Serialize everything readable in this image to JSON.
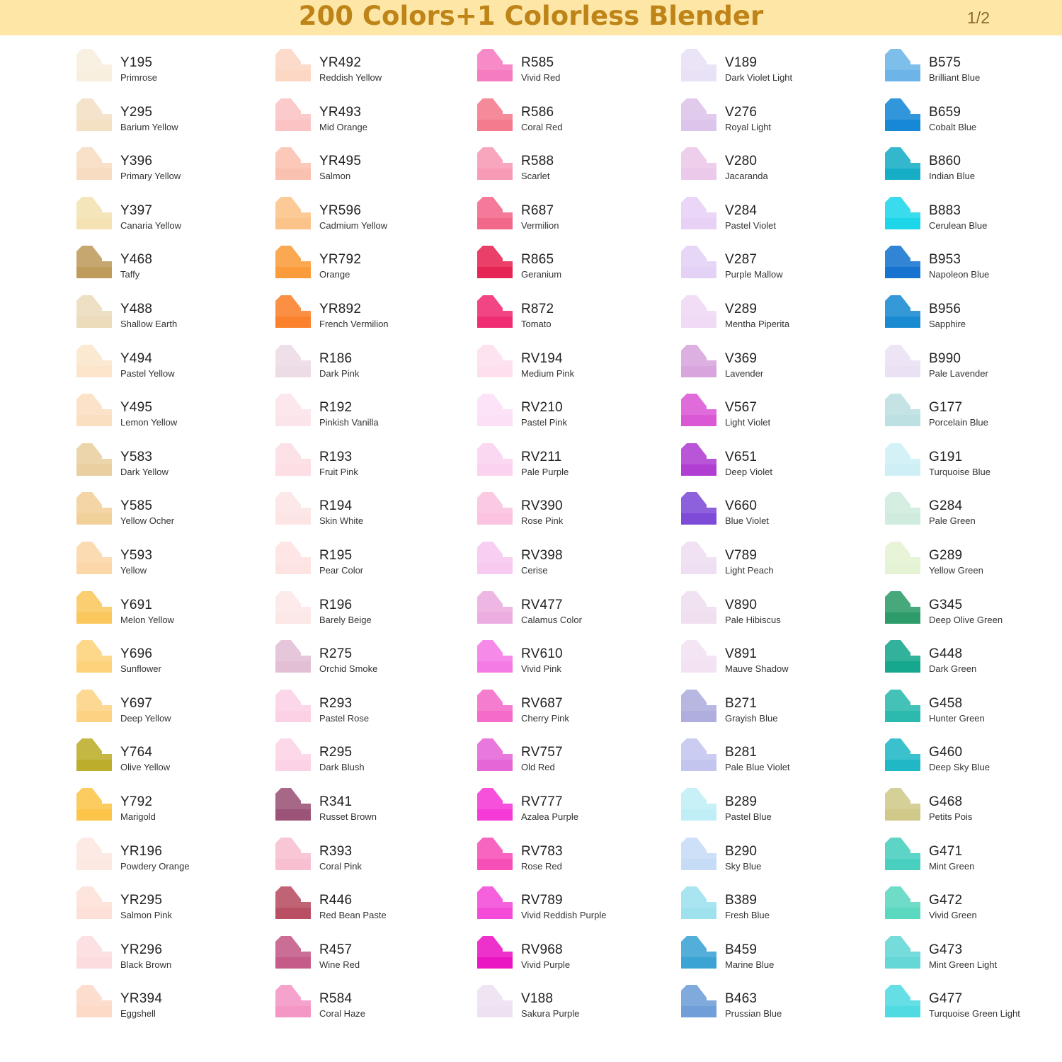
{
  "header": {
    "title": "200 Colors+1 Colorless Blender",
    "page_indicator": "1/2",
    "background_color": "#fde6a6",
    "title_color": "#bf8417"
  },
  "columns": [
    [
      {
        "code": "Y195",
        "name": "Primrose",
        "color": "#f8efdf"
      },
      {
        "code": "Y295",
        "name": "Barium Yellow",
        "color": "#f4e1c4"
      },
      {
        "code": "Y396",
        "name": "Primary Yellow",
        "color": "#f7dcc2"
      },
      {
        "code": "Y397",
        "name": "Canaria Yellow",
        "color": "#f4e2b2"
      },
      {
        "code": "Y468",
        "name": "Taffy",
        "color": "#bf9b5c"
      },
      {
        "code": "Y488",
        "name": "Shallow Earth",
        "color": "#ecdcbc"
      },
      {
        "code": "Y494",
        "name": "Pastel Yellow",
        "color": "#fbe6cc"
      },
      {
        "code": "Y495",
        "name": "Lemon Yellow",
        "color": "#fbdfc1"
      },
      {
        "code": "Y583",
        "name": "Dark Yellow",
        "color": "#ead0a0"
      },
      {
        "code": "Y585",
        "name": "Yellow Ocher",
        "color": "#f2d09a"
      },
      {
        "code": "Y593",
        "name": "Yellow",
        "color": "#fbd7a8"
      },
      {
        "code": "Y691",
        "name": "Melon Yellow",
        "color": "#fbc85e"
      },
      {
        "code": "Y696",
        "name": "Sunflower",
        "color": "#fdd27a"
      },
      {
        "code": "Y697",
        "name": "Deep Yellow",
        "color": "#fdd383"
      },
      {
        "code": "Y764",
        "name": "Olive Yellow",
        "color": "#bcad2a"
      },
      {
        "code": "Y792",
        "name": "Marigold",
        "color": "#fcc54a"
      },
      {
        "code": "YR196",
        "name": "Powdery Orange",
        "color": "#fde8e2"
      },
      {
        "code": "YR295",
        "name": "Salmon Pink",
        "color": "#fde1d8"
      },
      {
        "code": "YR296",
        "name": "Black Brown",
        "color": "#fcdcde"
      },
      {
        "code": "YR394",
        "name": "Eggshell",
        "color": "#fdd9c8"
      }
    ],
    [
      {
        "code": "YR492",
        "name": "Reddish Yellow",
        "color": "#fcd7c4"
      },
      {
        "code": "YR493",
        "name": "Mid Orange",
        "color": "#fbc3c3"
      },
      {
        "code": "YR495",
        "name": "Salmon",
        "color": "#fbc1b0"
      },
      {
        "code": "YR596",
        "name": "Cadmium Yellow",
        "color": "#fbc389"
      },
      {
        "code": "YR792",
        "name": "Orange",
        "color": "#fb9c3c"
      },
      {
        "code": "YR892",
        "name": "French Vermilion",
        "color": "#fb812c"
      },
      {
        "code": "R186",
        "name": "Dark Pink",
        "color": "#eddbe6"
      },
      {
        "code": "R192",
        "name": "Pinkish Vanilla",
        "color": "#fce5ea"
      },
      {
        "code": "R193",
        "name": "Fruit Pink",
        "color": "#fcdee4"
      },
      {
        "code": "R194",
        "name": "Skin White",
        "color": "#fde5e6"
      },
      {
        "code": "R195",
        "name": "Pear Color",
        "color": "#fde3e2"
      },
      {
        "code": "R196",
        "name": "Barely Beige",
        "color": "#fde8e8"
      },
      {
        "code": "R275",
        "name": "Orchid Smoke",
        "color": "#e3bfd6"
      },
      {
        "code": "R293",
        "name": "Pastel Rose",
        "color": "#fcd1e6"
      },
      {
        "code": "R295",
        "name": "Dark Blush",
        "color": "#fcd3e6"
      },
      {
        "code": "R341",
        "name": "Russet Brown",
        "color": "#9b5478"
      },
      {
        "code": "R393",
        "name": "Coral Pink",
        "color": "#f8bfd0"
      },
      {
        "code": "R446",
        "name": "Red Bean Paste",
        "color": "#b84f62"
      },
      {
        "code": "R457",
        "name": "Wine Red",
        "color": "#c45b88"
      },
      {
        "code": "R584",
        "name": "Coral Haze",
        "color": "#f496c6"
      }
    ],
    [
      {
        "code": "R585",
        "name": "Vivid Red",
        "color": "#f67cc0"
      },
      {
        "code": "R586",
        "name": "Coral Red",
        "color": "#f47a8e"
      },
      {
        "code": "R588",
        "name": "Scarlet",
        "color": "#f79ab5"
      },
      {
        "code": "R687",
        "name": "Vermilion",
        "color": "#f2688a"
      },
      {
        "code": "R865",
        "name": "Geranium",
        "color": "#e62555"
      },
      {
        "code": "R872",
        "name": "Tomato",
        "color": "#f02d72"
      },
      {
        "code": "RV194",
        "name": "Medium Pink",
        "color": "#fde0ed"
      },
      {
        "code": "RV210",
        "name": "Pastel Pink",
        "color": "#fce0f6"
      },
      {
        "code": "RV211",
        "name": "Pale Purple",
        "color": "#fbd3f0"
      },
      {
        "code": "RV390",
        "name": "Rose Pink",
        "color": "#fbc3df"
      },
      {
        "code": "RV398",
        "name": "Cerise",
        "color": "#f8c9f1"
      },
      {
        "code": "RV477",
        "name": "Calamus Color",
        "color": "#ecade0"
      },
      {
        "code": "RV610",
        "name": "Vivid Pink",
        "color": "#f47ae6"
      },
      {
        "code": "RV687",
        "name": "Cherry Pink",
        "color": "#f46bc9"
      },
      {
        "code": "RV757",
        "name": "Old Red",
        "color": "#e566d6"
      },
      {
        "code": "RV777",
        "name": "Azalea Purple",
        "color": "#f53ad7"
      },
      {
        "code": "RV783",
        "name": "Rose Red",
        "color": "#f650b8"
      },
      {
        "code": "RV789",
        "name": "Vivid Reddish Purple",
        "color": "#f44bd9"
      },
      {
        "code": "RV968",
        "name": "Vivid Purple",
        "color": "#ea16c3"
      },
      {
        "code": "V188",
        "name": "Sakura Purple",
        "color": "#ede2f1"
      }
    ],
    [
      {
        "code": "V189",
        "name": "Dark Violet Light",
        "color": "#e9e1f6"
      },
      {
        "code": "V276",
        "name": "Royal Light",
        "color": "#dcc4ea"
      },
      {
        "code": "V280",
        "name": "Jacaranda",
        "color": "#ebc9ea"
      },
      {
        "code": "V284",
        "name": "Pastel Violet",
        "color": "#e7d1f5"
      },
      {
        "code": "V287",
        "name": "Purple Mallow",
        "color": "#e4d2f6"
      },
      {
        "code": "V289",
        "name": "Mentha Piperita",
        "color": "#f0daf5"
      },
      {
        "code": "V369",
        "name": "Lavender",
        "color": "#d8a6dc"
      },
      {
        "code": "V567",
        "name": "Light Violet",
        "color": "#db58d5"
      },
      {
        "code": "V651",
        "name": "Deep Violet",
        "color": "#b03ed2"
      },
      {
        "code": "V660",
        "name": "Blue Violet",
        "color": "#7e4ad8"
      },
      {
        "code": "V789",
        "name": "Light Peach",
        "color": "#eedff2"
      },
      {
        "code": "V890",
        "name": "Pale Hibiscus",
        "color": "#f0dfef"
      },
      {
        "code": "V891",
        "name": "Mauve Shadow",
        "color": "#f2e2f2"
      },
      {
        "code": "B271",
        "name": "Grayish Blue",
        "color": "#afaede"
      },
      {
        "code": "B281",
        "name": "Pale Blue Violet",
        "color": "#c3c5ef"
      },
      {
        "code": "B289",
        "name": "Pastel Blue",
        "color": "#c0eef6"
      },
      {
        "code": "B290",
        "name": "Sky Blue",
        "color": "#c6dcf6"
      },
      {
        "code": "B389",
        "name": "Fresh Blue",
        "color": "#9ee2ee"
      },
      {
        "code": "B459",
        "name": "Marine Blue",
        "color": "#3ca4d4"
      },
      {
        "code": "B463",
        "name": "Prussian Blue",
        "color": "#6f9ed8"
      }
    ],
    [
      {
        "code": "B575",
        "name": "Brilliant Blue",
        "color": "#6db5e8"
      },
      {
        "code": "B659",
        "name": "Cobalt Blue",
        "color": "#1688d6"
      },
      {
        "code": "B860",
        "name": "Indian Blue",
        "color": "#16aec6"
      },
      {
        "code": "B883",
        "name": "Cerulean Blue",
        "color": "#1ed6ea"
      },
      {
        "code": "B953",
        "name": "Napoleon Blue",
        "color": "#1674d0"
      },
      {
        "code": "B956",
        "name": "Sapphire",
        "color": "#1a8ad2"
      },
      {
        "code": "B990",
        "name": "Pale Lavender",
        "color": "#ebe1f4"
      },
      {
        "code": "G177",
        "name": "Porcelain Blue",
        "color": "#bde0e2"
      },
      {
        "code": "G191",
        "name": "Turquoise Blue",
        "color": "#cdeff5"
      },
      {
        "code": "G284",
        "name": "Pale Green",
        "color": "#cfecde"
      },
      {
        "code": "G289",
        "name": "Yellow Green",
        "color": "#e4f3d3"
      },
      {
        "code": "G345",
        "name": "Deep Olive Green",
        "color": "#2e9c6a"
      },
      {
        "code": "G448",
        "name": "Dark Green",
        "color": "#16a88e"
      },
      {
        "code": "G458",
        "name": "Hunter Green",
        "color": "#2cbaaf"
      },
      {
        "code": "G460",
        "name": "Deep Sky Blue",
        "color": "#20b8c6"
      },
      {
        "code": "G468",
        "name": "Petits Pois",
        "color": "#d0c98a"
      },
      {
        "code": "G471",
        "name": "Mint Green",
        "color": "#48cfc0"
      },
      {
        "code": "G472",
        "name": "Vivid Green",
        "color": "#5ad8c0"
      },
      {
        "code": "G473",
        "name": "Mint Green Light",
        "color": "#64d7d6"
      },
      {
        "code": "G477",
        "name": "Turquoise Green Light",
        "color": "#50dae2"
      }
    ]
  ]
}
